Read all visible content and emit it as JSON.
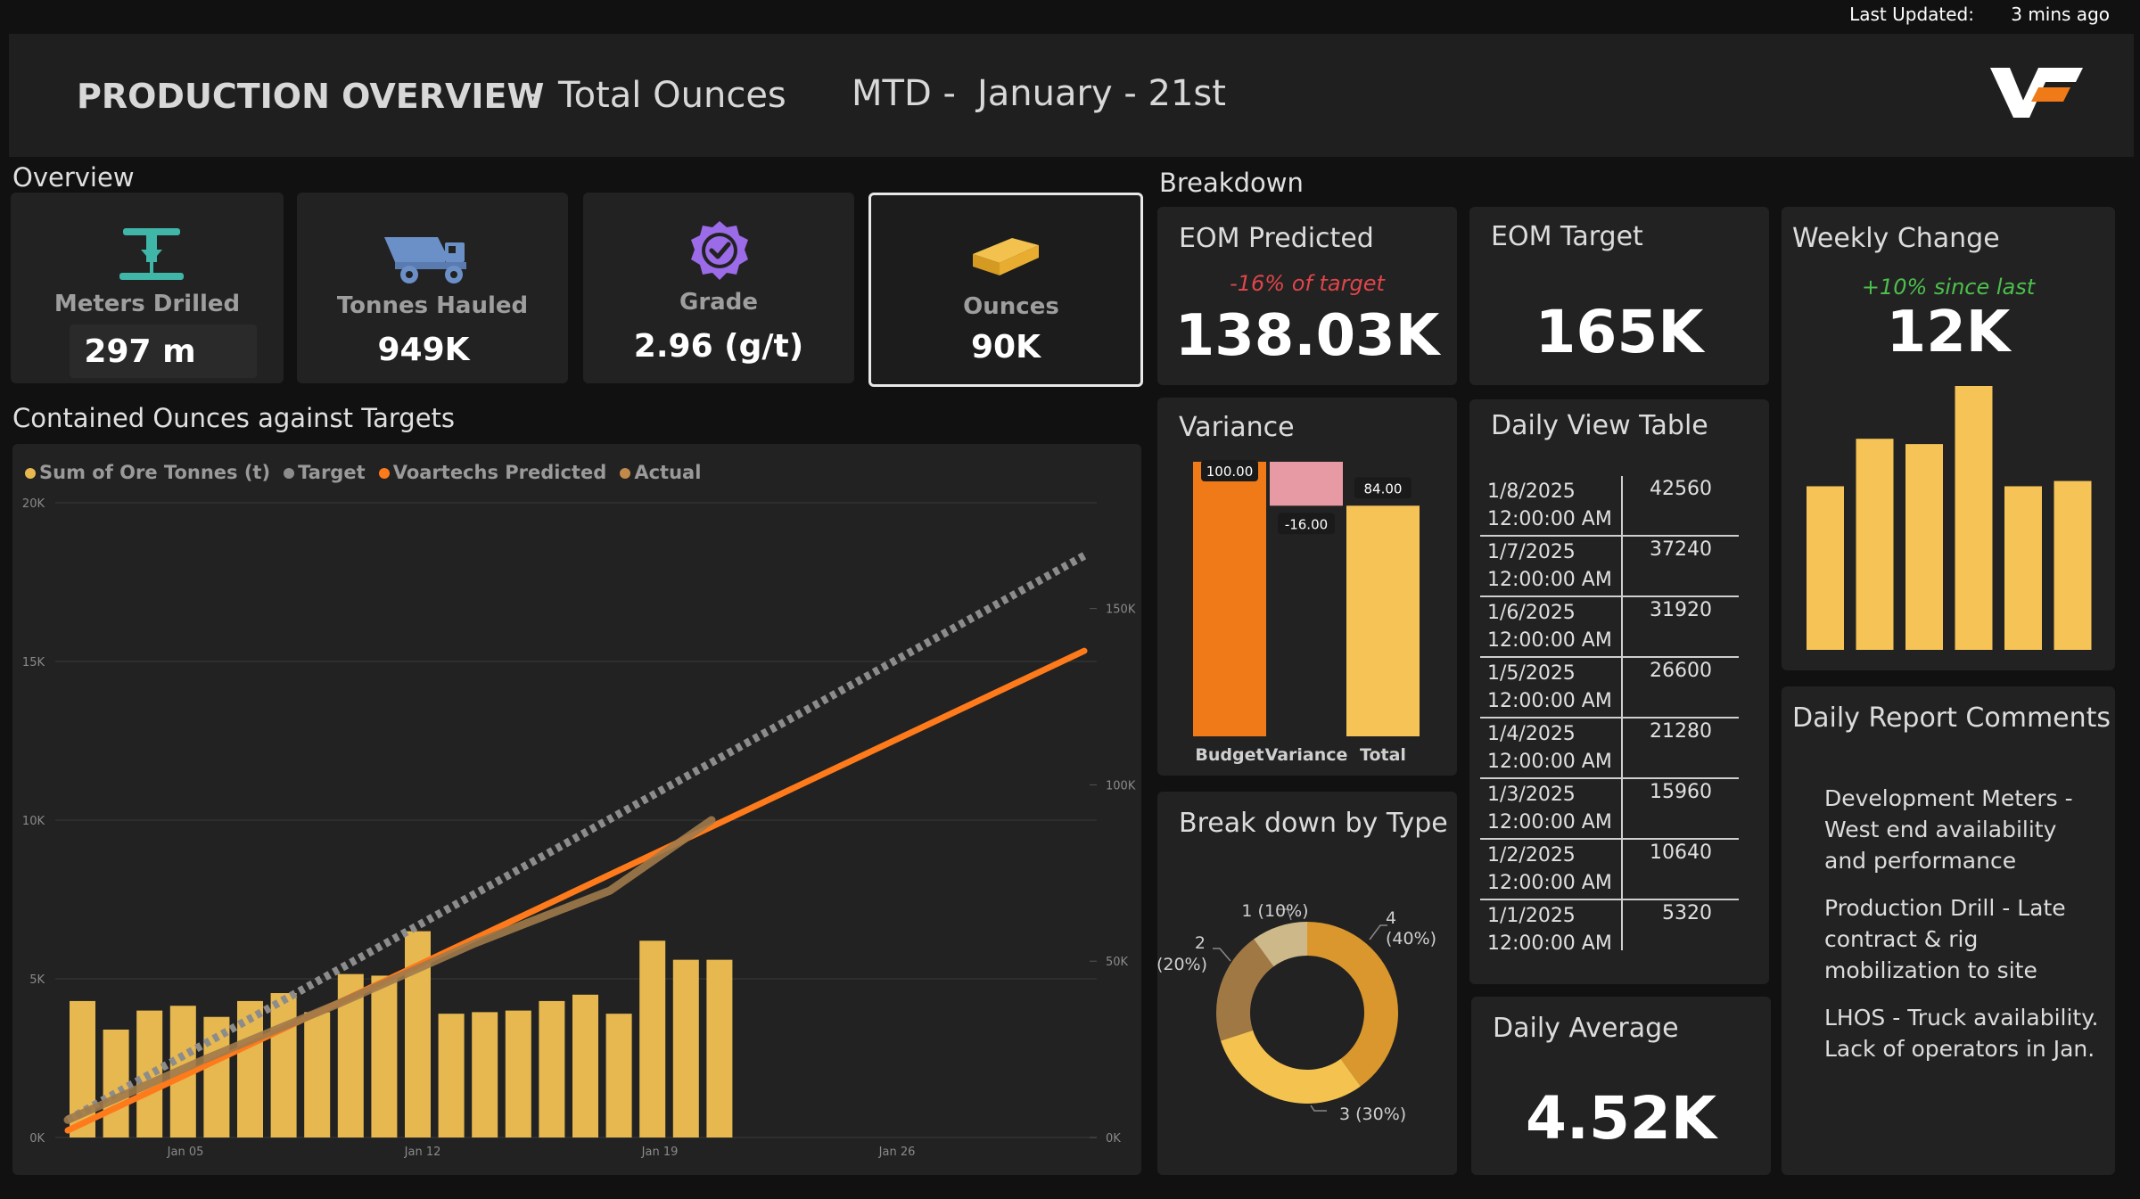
{
  "top": {
    "updated_label": "Last Updated:",
    "updated_value": "3 mins ago"
  },
  "header": {
    "title": "PRODUCTION OVERVIEW",
    "dash1": "-",
    "subtitle": "Total Ounces",
    "period_prefix": "MTD -",
    "period_date": "January - 21st",
    "logo_icon": "voartechs-logo"
  },
  "overview": {
    "section_label": "Overview",
    "kpis": [
      {
        "label": "Meters Drilled",
        "value": "297 m",
        "icon": "drill-rig-icon"
      },
      {
        "label": "Tonnes Hauled",
        "value": "949K",
        "icon": "haul-truck-icon"
      },
      {
        "label": "Grade",
        "value": "2.96 (g/t)",
        "icon": "badge-check-icon"
      },
      {
        "label": "Ounces",
        "value": "90K",
        "icon": "gold-bar-icon"
      }
    ]
  },
  "main_chart": {
    "section_label": "Contained Ounces against Targets",
    "legend": [
      "Sum of Ore Tonnes (t)",
      "Target",
      "Voartechs Predicted",
      "Actual"
    ],
    "colors": {
      "bars": "#e6b84f",
      "target": "#8c8c8c",
      "predicted": "#ff7a1a",
      "actual": "#a07a4a"
    }
  },
  "chart_data": {
    "type": "bar",
    "x_ticks": [
      "Jan 05",
      "Jan 12",
      "Jan 19",
      "Jan 26"
    ],
    "y_left_ticks": [
      "0K",
      "5K",
      "10K",
      "15K",
      "20K"
    ],
    "y_right_ticks": [
      "0K",
      "50K",
      "100K",
      "150K"
    ],
    "ylim_left": [
      0,
      20000
    ],
    "ylim_right": [
      0,
      180000
    ],
    "bar_values": [
      4300,
      3400,
      4000,
      4150,
      3800,
      4300,
      4550,
      3950,
      5150,
      5100,
      6500,
      3900,
      3950,
      4000,
      4300,
      4500,
      3900,
      6200,
      5600,
      5600
    ],
    "series": [
      {
        "name": "Target",
        "x_index": [
          0,
          30
        ],
        "values": [
          5000,
          165000
        ]
      },
      {
        "name": "Voartechs Predicted",
        "x_index": [
          0,
          30
        ],
        "values": [
          2000,
          138000
        ]
      },
      {
        "name": "Actual",
        "x_index": [
          0,
          4,
          8,
          12,
          16,
          19
        ],
        "values": [
          5000,
          22000,
          38000,
          55000,
          70000,
          90000
        ]
      }
    ]
  },
  "breakdown": {
    "section_label": "Breakdown",
    "eom_predicted": {
      "title": "EOM Predicted",
      "note": "-16% of target",
      "value": "138.03K"
    },
    "eom_target": {
      "title": "EOM Target",
      "value": "165K"
    },
    "weekly_change": {
      "title": "Weekly Change",
      "note": "+10% since last",
      "value": "12K",
      "bar_values": [
        62,
        80,
        78,
        100,
        62,
        64
      ]
    },
    "variance": {
      "title": "Variance",
      "bars": [
        {
          "label": "Budget",
          "value": 100,
          "text": "100.00"
        },
        {
          "label": "Variance",
          "value": -16,
          "text": "-16.00"
        },
        {
          "label": "Total",
          "value": 84,
          "text": "84.00"
        }
      ]
    },
    "donut": {
      "title": "Break down by Type",
      "slices": [
        {
          "label": "4",
          "pct": "(40%)",
          "value": 40,
          "color": "#d9972e"
        },
        {
          "label": "3 (30%)",
          "pct": "",
          "value": 30,
          "color": "#f3c24f"
        },
        {
          "label": "2",
          "pct": "(20%)",
          "value": 20,
          "color": "#a07844"
        },
        {
          "label": "1 (10%)",
          "pct": "",
          "value": 10,
          "color": "#cdb88a"
        }
      ]
    },
    "daily_table": {
      "title": "Daily View Table",
      "rows": [
        {
          "date": "1/8/2025",
          "time": "12:00:00 AM",
          "value": "42560"
        },
        {
          "date": "1/7/2025",
          "time": "12:00:00 AM",
          "value": "37240"
        },
        {
          "date": "1/6/2025",
          "time": "12:00:00 AM",
          "value": "31920"
        },
        {
          "date": "1/5/2025",
          "time": "12:00:00 AM",
          "value": "26600"
        },
        {
          "date": "1/4/2025",
          "time": "12:00:00 AM",
          "value": "21280"
        },
        {
          "date": "1/3/2025",
          "time": "12:00:00 AM",
          "value": "15960"
        },
        {
          "date": "1/2/2025",
          "time": "12:00:00 AM",
          "value": "10640"
        },
        {
          "date": "1/1/2025",
          "time": "12:00:00 AM",
          "value": "5320"
        }
      ]
    },
    "daily_average": {
      "title": "Daily Average",
      "value": "4.52K"
    },
    "comments": {
      "title": "Daily Report Comments",
      "items": [
        "Development Meters - West end availability and performance",
        "Production Drill - Late contract & rig mobilization to site",
        "LHOS - Truck availability. Lack of operators in Jan."
      ]
    }
  }
}
